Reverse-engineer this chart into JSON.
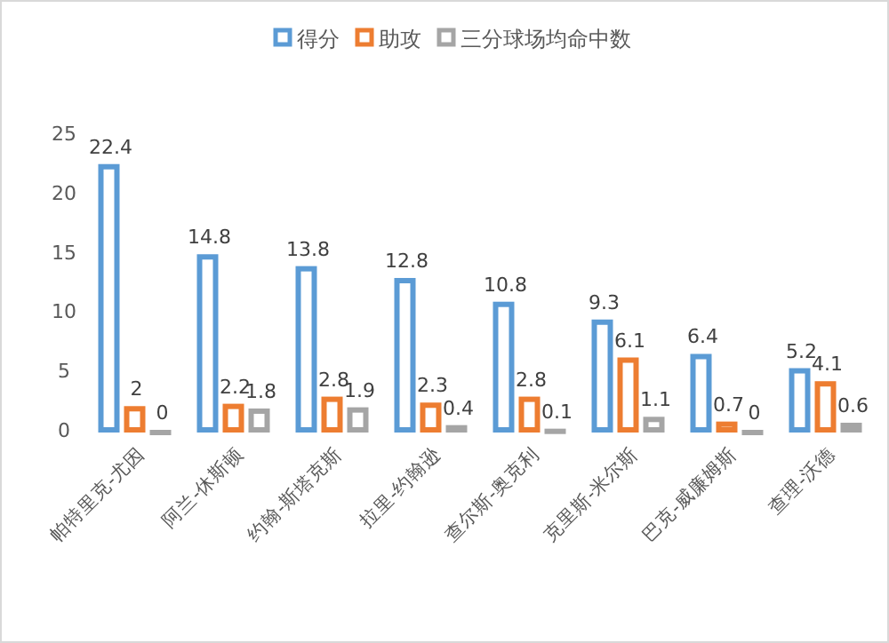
{
  "chart_data": {
    "type": "bar",
    "categories": [
      "帕特里克-尤因",
      "阿兰-休斯顿",
      "约翰-斯塔克斯",
      "拉里-约翰逊",
      "查尔斯-奥克利",
      "克里斯-米尔斯",
      "巴克-威廉姆斯",
      "查理-沃德"
    ],
    "series": [
      {
        "name": "得分",
        "color": "#5b9bd5",
        "values": [
          22.4,
          14.8,
          13.8,
          12.8,
          10.8,
          9.3,
          6.4,
          5.2
        ]
      },
      {
        "name": "助攻",
        "color": "#ed7d31",
        "values": [
          2,
          2.2,
          2.8,
          2.3,
          2.8,
          6.1,
          0.7,
          4.1
        ]
      },
      {
        "name": "三分球场均命中数",
        "color": "#a5a5a5",
        "values": [
          0,
          1.8,
          1.9,
          0.4,
          0.1,
          1.1,
          0,
          0.6
        ]
      }
    ],
    "ylim": [
      0,
      25
    ],
    "yticks": [
      0,
      5,
      10,
      15,
      20,
      25
    ],
    "legend": "top",
    "data_labels": true
  }
}
